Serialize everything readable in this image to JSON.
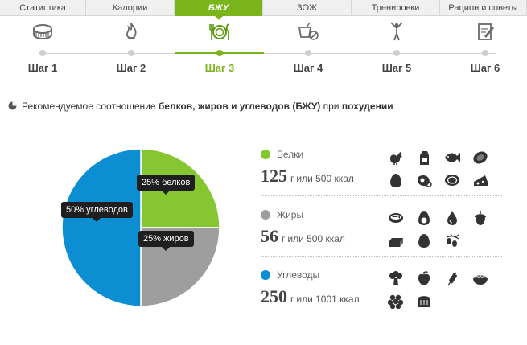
{
  "tabs": [
    {
      "label": "Статистика",
      "active": false,
      "w": 107
    },
    {
      "label": "Калории",
      "active": false,
      "w": 110
    },
    {
      "label": "БЖУ",
      "active": true,
      "w": 110
    },
    {
      "label": "ЗОЖ",
      "active": false,
      "w": 110
    },
    {
      "label": "Тренировки",
      "active": false,
      "w": 110
    },
    {
      "label": "Рацион и советы",
      "active": false,
      "w": 108
    }
  ],
  "steps": [
    {
      "label": "Шаг 1",
      "icon": "scale-icon",
      "active": false
    },
    {
      "label": "Шаг 2",
      "icon": "flame-icon",
      "active": false
    },
    {
      "label": "Шаг 3",
      "icon": "plate-cutlery-icon",
      "active": true
    },
    {
      "label": "Шаг 4",
      "icon": "drink-no-icon",
      "active": false
    },
    {
      "label": "Шаг 5",
      "icon": "gymnast-icon",
      "active": false
    },
    {
      "label": "Шаг 6",
      "icon": "notepad-icon",
      "active": false
    }
  ],
  "heading": {
    "p1": "Рекомендуемое соотношение ",
    "b1": "белков, жиров и углеводов (БЖУ)",
    "p2": " при ",
    "b2": "похудении"
  },
  "chart_data": {
    "type": "pie",
    "series": [
      {
        "name": "белков",
        "value": 25,
        "color": "#86c731",
        "label": "25% белков"
      },
      {
        "name": "жиров",
        "value": 25,
        "color": "#9e9e9e",
        "label": "25% жиров"
      },
      {
        "name": "углеводов",
        "value": 50,
        "color": "#0b8ed2",
        "label": "50% углеводов"
      }
    ]
  },
  "macros": [
    {
      "name": "Белки",
      "color": "#86c731",
      "value": "125",
      "unit": "г",
      "kcal": "или 500 ккал",
      "foods": [
        "chicken-icon",
        "milk-carton-icon",
        "fish-icon",
        "sausage-icon",
        "egg-icon",
        "ham-icon",
        "steak-icon",
        "cheese-icon"
      ]
    },
    {
      "name": "Жиры",
      "color": "#9e9e9e",
      "value": "56",
      "unit": "г",
      "kcal": "или 500 ккал",
      "foods": [
        "fish-can-icon",
        "avocado-icon",
        "oil-drop-icon",
        "nut-icon",
        "butter-icon",
        "egg-icon",
        "olives-icon"
      ]
    },
    {
      "name": "Углеводы",
      "color": "#0b8ed2",
      "value": "250",
      "unit": "г",
      "kcal": "или 1001 ккал",
      "foods": [
        "broccoli-icon",
        "apple-icon",
        "wheat-icon",
        "rice-bowl-icon",
        "berries-icon",
        "bread-icon"
      ]
    }
  ]
}
